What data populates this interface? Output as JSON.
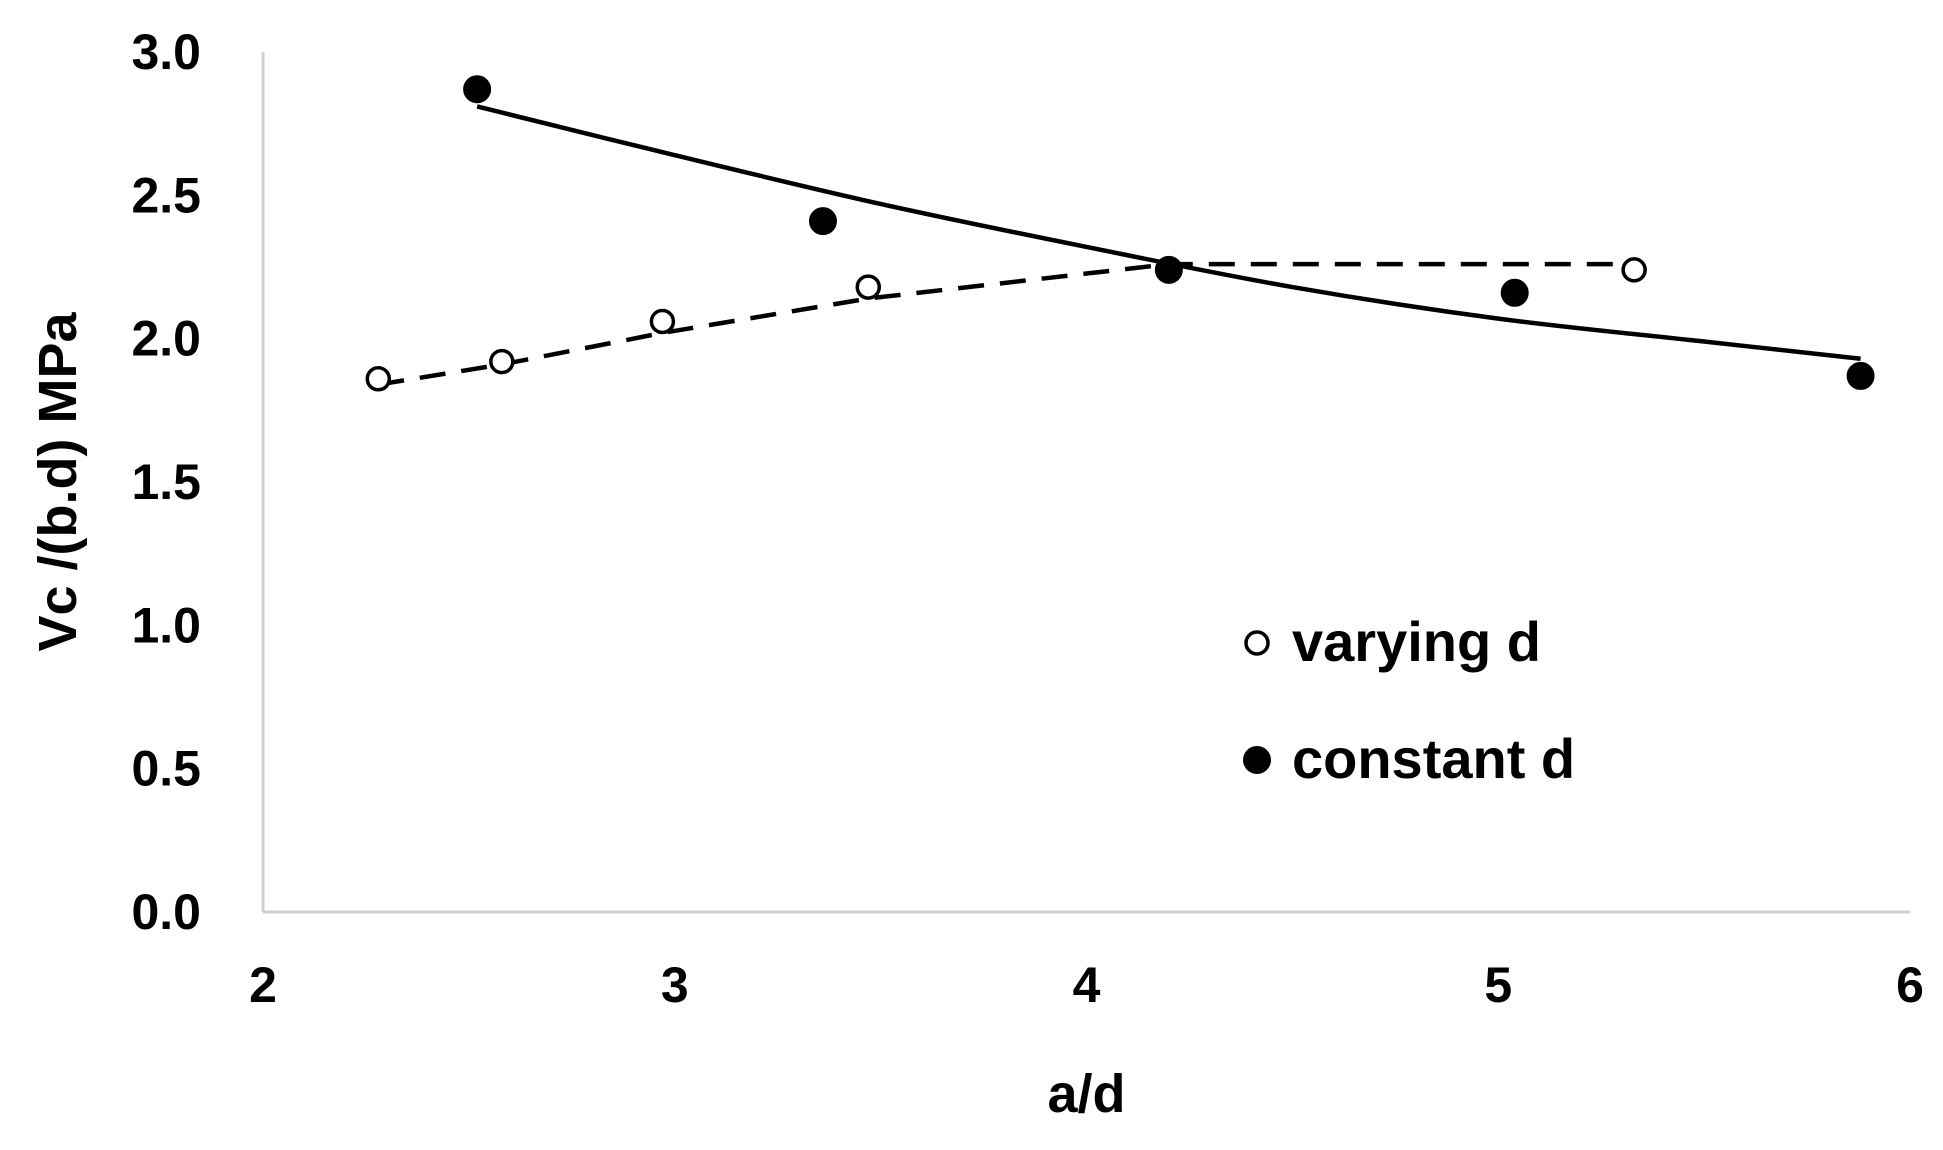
{
  "chart_data": {
    "type": "scatter",
    "title": "",
    "xlabel": "a/d",
    "ylabel": "Vc /(b.d) MPa",
    "xlim": [
      2,
      6
    ],
    "ylim": [
      0.0,
      3.0
    ],
    "x_ticks": [
      "2",
      "3",
      "4",
      "5",
      "6"
    ],
    "y_ticks": [
      "0.0",
      "0.5",
      "1.0",
      "1.5",
      "2.0",
      "2.5",
      "3.0"
    ],
    "grid": false,
    "legend_position": "center-right",
    "series": [
      {
        "name": "varying d",
        "marker": "open-circle",
        "trendline": "dashed",
        "points": [
          {
            "x": 2.28,
            "y": 1.86
          },
          {
            "x": 2.58,
            "y": 1.92
          },
          {
            "x": 2.97,
            "y": 2.06
          },
          {
            "x": 3.47,
            "y": 2.18
          },
          {
            "x": 4.2,
            "y": 2.24
          },
          {
            "x": 5.33,
            "y": 2.24
          }
        ],
        "trend": [
          {
            "x": 2.28,
            "y": 1.84
          },
          {
            "x": 2.58,
            "y": 1.91
          },
          {
            "x": 2.97,
            "y": 2.02
          },
          {
            "x": 3.47,
            "y": 2.14
          },
          {
            "x": 4.2,
            "y": 2.26
          },
          {
            "x": 5.33,
            "y": 2.26
          }
        ]
      },
      {
        "name": "constant d",
        "marker": "filled-circle",
        "trendline": "solid",
        "points": [
          {
            "x": 2.52,
            "y": 2.87
          },
          {
            "x": 3.36,
            "y": 2.41
          },
          {
            "x": 4.2,
            "y": 2.24
          },
          {
            "x": 5.04,
            "y": 2.16
          },
          {
            "x": 5.88,
            "y": 1.87
          }
        ],
        "trend": [
          {
            "x": 2.52,
            "y": 2.81
          },
          {
            "x": 3.0,
            "y": 2.64
          },
          {
            "x": 3.5,
            "y": 2.47
          },
          {
            "x": 4.0,
            "y": 2.32
          },
          {
            "x": 4.5,
            "y": 2.18
          },
          {
            "x": 5.0,
            "y": 2.07
          },
          {
            "x": 5.5,
            "y": 1.99
          },
          {
            "x": 5.88,
            "y": 1.93
          }
        ]
      }
    ]
  }
}
